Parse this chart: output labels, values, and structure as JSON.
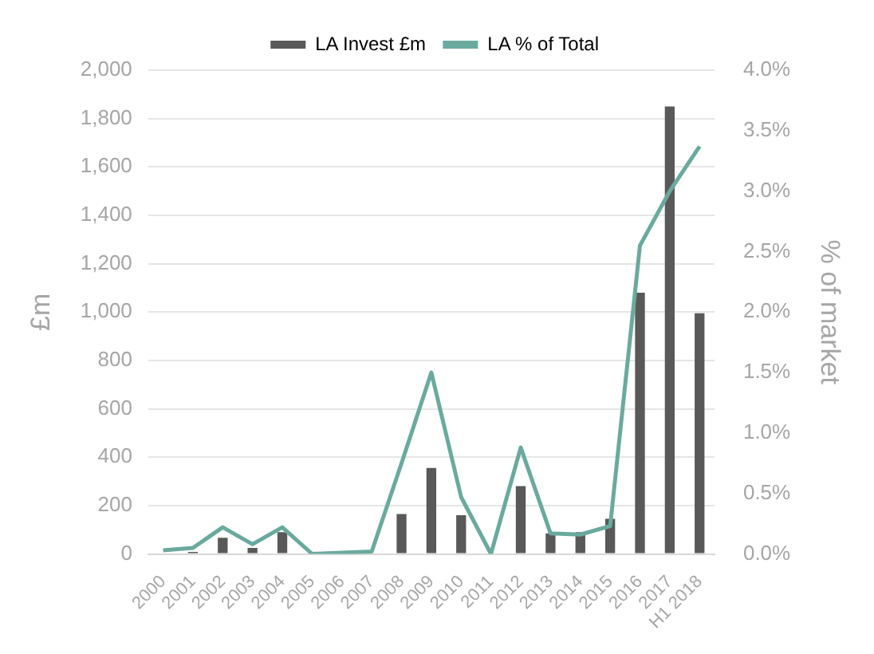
{
  "chart_data": {
    "type": "bar",
    "ylabel": "£m",
    "y2label": "% of market",
    "categories": [
      "2000",
      "2001",
      "2002",
      "2003",
      "2004",
      "2005",
      "2006",
      "2007",
      "2008",
      "2009",
      "2010",
      "2011",
      "2012",
      "2013",
      "2014",
      "2015",
      "2016",
      "2017",
      "H1 2018"
    ],
    "series": [
      {
        "name": "LA Invest £m",
        "color": "#595959",
        "values": [
          3,
          8,
          67,
          25,
          90,
          0,
          0,
          3,
          165,
          355,
          160,
          0,
          280,
          85,
          90,
          145,
          1080,
          1850,
          995
        ]
      },
      {
        "name": "LA % of Total",
        "type": "line",
        "axis": "y2",
        "color": "#6aaa9e",
        "values": [
          0.03,
          0.05,
          0.22,
          0.08,
          0.22,
          0,
          0.01,
          0.02,
          0.75,
          1.5,
          0.47,
          0,
          0.88,
          0.17,
          0.16,
          0.23,
          2.55,
          3.0,
          3.37
        ]
      }
    ],
    "ylim": [
      0,
      2000
    ],
    "yticks": [
      {
        "value": 0,
        "label": "0"
      },
      {
        "value": 200,
        "label": "200"
      },
      {
        "value": 400,
        "label": "400"
      },
      {
        "value": 600,
        "label": "600"
      },
      {
        "value": 800,
        "label": "800"
      },
      {
        "value": 1000,
        "label": "1,000"
      },
      {
        "value": 1200,
        "label": "1,200"
      },
      {
        "value": 1400,
        "label": "1,400"
      },
      {
        "value": 1600,
        "label": "1,600"
      },
      {
        "value": 1800,
        "label": "1,800"
      },
      {
        "value": 2000,
        "label": "2,000"
      }
    ],
    "y2lim": [
      0,
      4
    ],
    "y2ticks": [
      {
        "value": 0,
        "label": "0.0%"
      },
      {
        "value": 0.5,
        "label": "0.5%"
      },
      {
        "value": 1,
        "label": "1.0%"
      },
      {
        "value": 1.5,
        "label": "1.5%"
      },
      {
        "value": 2,
        "label": "2.0%"
      },
      {
        "value": 2.5,
        "label": "2.5%"
      },
      {
        "value": 3,
        "label": "3.0%"
      },
      {
        "value": 3.5,
        "label": "3.5%"
      },
      {
        "value": 4,
        "label": "4.0%"
      }
    ],
    "grid": "y",
    "legend": "top",
    "marker": "none"
  }
}
